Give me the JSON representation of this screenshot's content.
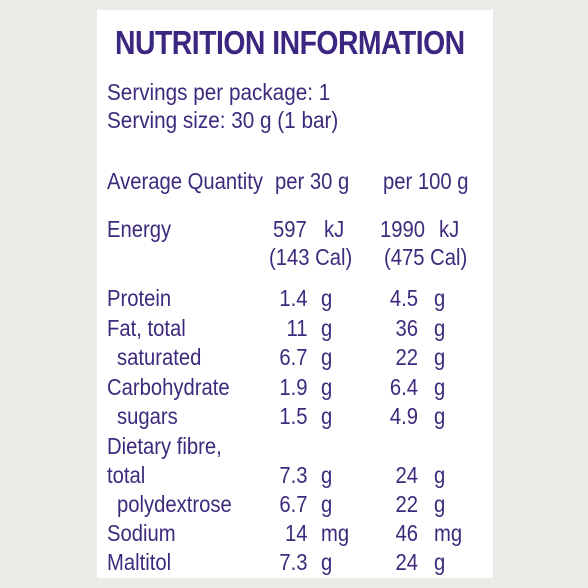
{
  "title": "NUTRITION INFORMATION",
  "servings": "Servings per package: 1",
  "serving_size": "Serving size: 30 g (1 bar)",
  "headers": {
    "quantity": "Average Quantity",
    "per30": "per 30 g",
    "per100": "per 100 g"
  },
  "energy": {
    "label": "Energy",
    "v30": "597",
    "u30": "kJ",
    "cal30": "(143 Cal)",
    "v100": "1990",
    "u100": "kJ",
    "cal100": "(475 Cal)"
  },
  "rows": [
    {
      "label": "Protein",
      "v30": "1.4",
      "u30": "g",
      "v100": "4.5",
      "u100": "g"
    },
    {
      "label": "Fat, total",
      "v30": "11",
      "u30": "g",
      "v100": "36",
      "u100": "g"
    },
    {
      "label": "saturated",
      "v30": "6.7",
      "u30": "g",
      "v100": "22",
      "u100": "g"
    },
    {
      "label": "Carbohydrate",
      "v30": "1.9",
      "u30": "g",
      "v100": "6.4",
      "u100": "g"
    },
    {
      "label": "sugars",
      "v30": "1.5",
      "u30": "g",
      "v100": "4.9",
      "u100": "g"
    },
    {
      "label": "Dietary fibre,"
    },
    {
      "label": "total",
      "v30": "7.3",
      "u30": "g",
      "v100": "24",
      "u100": "g"
    },
    {
      "label": "polydextrose",
      "v30": "6.7",
      "u30": "g",
      "v100": "22",
      "u100": "g"
    },
    {
      "label": "Sodium",
      "v30": "14",
      "u30": "mg",
      "v100": "46",
      "u100": "mg"
    },
    {
      "label": "Maltitol",
      "v30": "7.3",
      "u30": "g",
      "v100": "24",
      "u100": "g"
    }
  ]
}
